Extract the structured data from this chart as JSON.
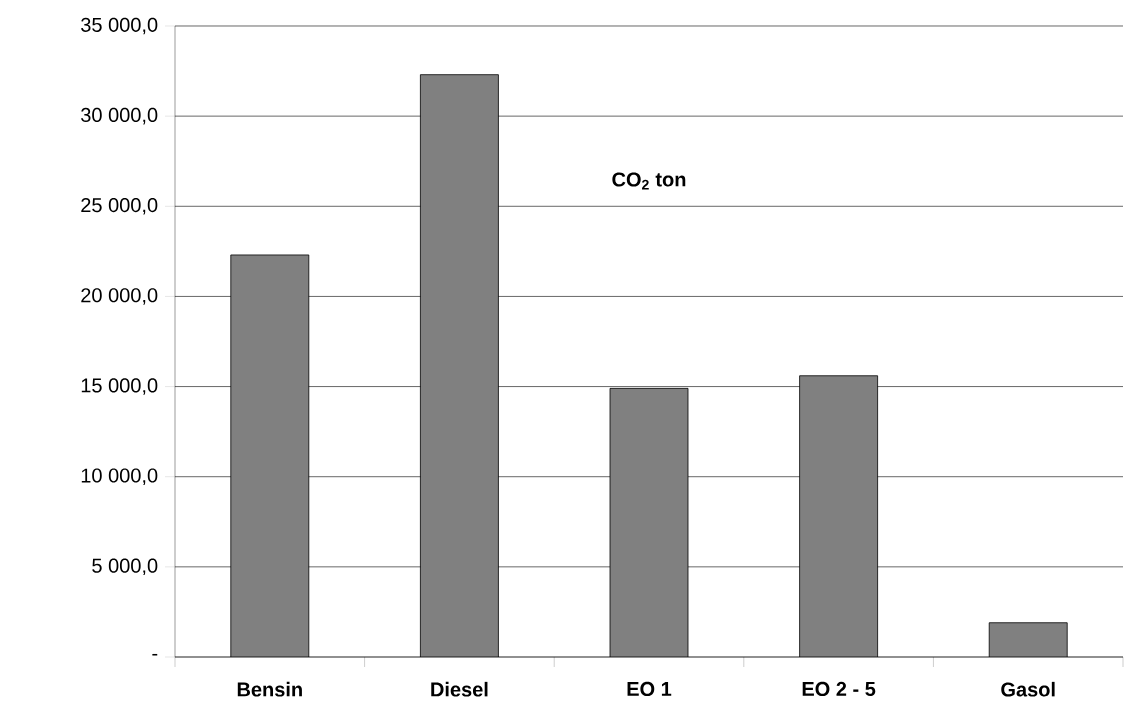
{
  "chart_data": {
    "type": "bar",
    "title": "CO$_{2}$ ton",
    "categories": [
      "Bensin",
      "Diesel",
      "EO 1",
      "EO 2 - 5",
      "Gasol"
    ],
    "values": [
      22300,
      32300,
      14900,
      15600,
      1900
    ],
    "color": "#808080",
    "ylim": [
      0,
      35000
    ],
    "yticks": [
      {
        "value": 0,
        "label": "-"
      },
      {
        "value": 5000,
        "label": "5 000,0"
      },
      {
        "value": 10000,
        "label": "10 000,0"
      },
      {
        "value": 15000,
        "label": "15 000,0"
      },
      {
        "value": 20000,
        "label": "20 000,0"
      },
      {
        "value": 25000,
        "label": "25 000,0"
      },
      {
        "value": 30000,
        "label": "30 000,0"
      },
      {
        "value": 35000,
        "label": "35 000,0"
      }
    ],
    "grid": "y"
  }
}
